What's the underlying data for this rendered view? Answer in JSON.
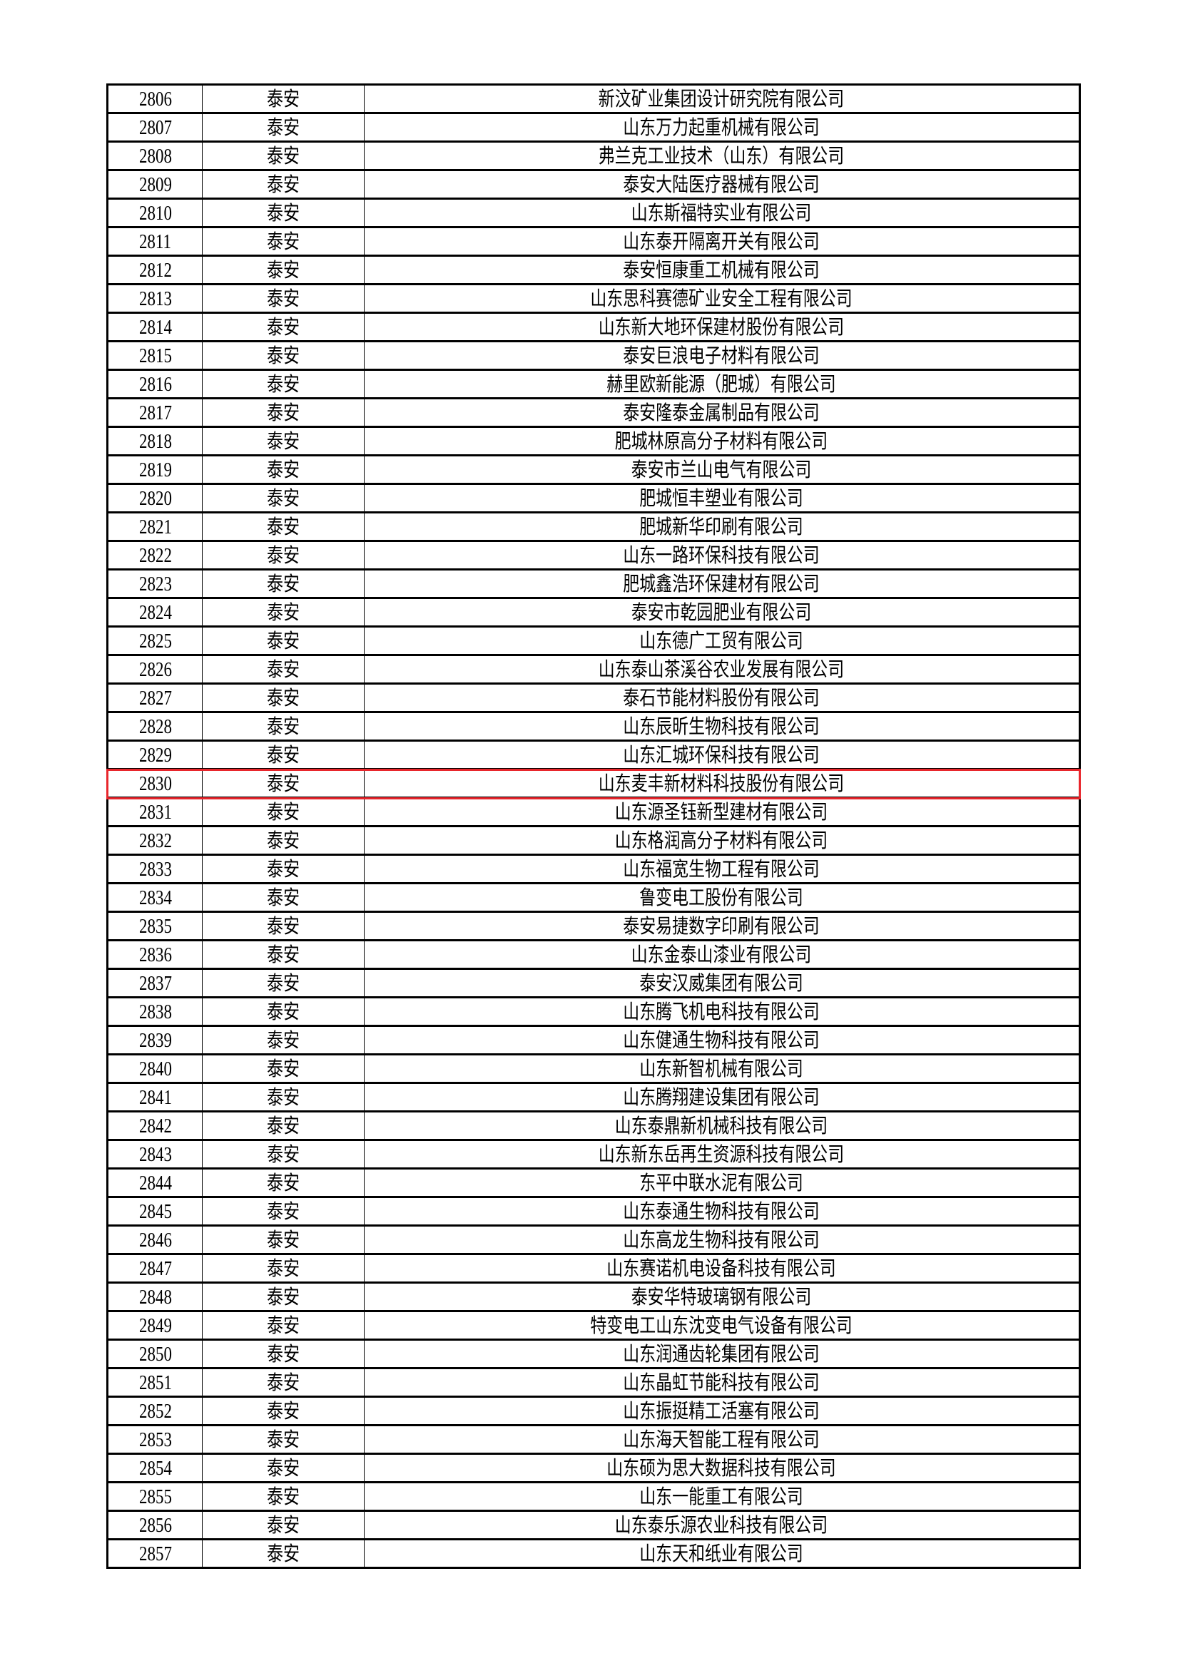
{
  "highlight_color": "#e8262c",
  "highlighted_no": "2830",
  "rows": [
    {
      "no": "2806",
      "city": "泰安",
      "company": "新汶矿业集团设计研究院有限公司"
    },
    {
      "no": "2807",
      "city": "泰安",
      "company": "山东万力起重机械有限公司"
    },
    {
      "no": "2808",
      "city": "泰安",
      "company": "弗兰克工业技术（山东）有限公司"
    },
    {
      "no": "2809",
      "city": "泰安",
      "company": "泰安大陆医疗器械有限公司"
    },
    {
      "no": "2810",
      "city": "泰安",
      "company": "山东斯福特实业有限公司"
    },
    {
      "no": "2811",
      "city": "泰安",
      "company": "山东泰开隔离开关有限公司"
    },
    {
      "no": "2812",
      "city": "泰安",
      "company": "泰安恒康重工机械有限公司"
    },
    {
      "no": "2813",
      "city": "泰安",
      "company": "山东思科赛德矿业安全工程有限公司"
    },
    {
      "no": "2814",
      "city": "泰安",
      "company": "山东新大地环保建材股份有限公司"
    },
    {
      "no": "2815",
      "city": "泰安",
      "company": "泰安巨浪电子材料有限公司"
    },
    {
      "no": "2816",
      "city": "泰安",
      "company": "赫里欧新能源（肥城）有限公司"
    },
    {
      "no": "2817",
      "city": "泰安",
      "company": "泰安隆泰金属制品有限公司"
    },
    {
      "no": "2818",
      "city": "泰安",
      "company": "肥城林原高分子材料有限公司"
    },
    {
      "no": "2819",
      "city": "泰安",
      "company": "泰安市兰山电气有限公司"
    },
    {
      "no": "2820",
      "city": "泰安",
      "company": "肥城恒丰塑业有限公司"
    },
    {
      "no": "2821",
      "city": "泰安",
      "company": "肥城新华印刷有限公司"
    },
    {
      "no": "2822",
      "city": "泰安",
      "company": "山东一路环保科技有限公司"
    },
    {
      "no": "2823",
      "city": "泰安",
      "company": "肥城鑫浩环保建材有限公司"
    },
    {
      "no": "2824",
      "city": "泰安",
      "company": "泰安市乾园肥业有限公司"
    },
    {
      "no": "2825",
      "city": "泰安",
      "company": "山东德广工贸有限公司"
    },
    {
      "no": "2826",
      "city": "泰安",
      "company": "山东泰山茶溪谷农业发展有限公司"
    },
    {
      "no": "2827",
      "city": "泰安",
      "company": "泰石节能材料股份有限公司"
    },
    {
      "no": "2828",
      "city": "泰安",
      "company": "山东辰昕生物科技有限公司"
    },
    {
      "no": "2829",
      "city": "泰安",
      "company": "山东汇城环保科技有限公司"
    },
    {
      "no": "2830",
      "city": "泰安",
      "company": "山东麦丰新材料科技股份有限公司"
    },
    {
      "no": "2831",
      "city": "泰安",
      "company": "山东源圣钰新型建材有限公司"
    },
    {
      "no": "2832",
      "city": "泰安",
      "company": "山东格润高分子材料有限公司"
    },
    {
      "no": "2833",
      "city": "泰安",
      "company": "山东福宽生物工程有限公司"
    },
    {
      "no": "2834",
      "city": "泰安",
      "company": "鲁变电工股份有限公司"
    },
    {
      "no": "2835",
      "city": "泰安",
      "company": "泰安易捷数字印刷有限公司"
    },
    {
      "no": "2836",
      "city": "泰安",
      "company": "山东金泰山漆业有限公司"
    },
    {
      "no": "2837",
      "city": "泰安",
      "company": "泰安汉威集团有限公司"
    },
    {
      "no": "2838",
      "city": "泰安",
      "company": "山东腾飞机电科技有限公司"
    },
    {
      "no": "2839",
      "city": "泰安",
      "company": "山东健通生物科技有限公司"
    },
    {
      "no": "2840",
      "city": "泰安",
      "company": "山东新智机械有限公司"
    },
    {
      "no": "2841",
      "city": "泰安",
      "company": "山东腾翔建设集团有限公司"
    },
    {
      "no": "2842",
      "city": "泰安",
      "company": "山东泰鼎新机械科技有限公司"
    },
    {
      "no": "2843",
      "city": "泰安",
      "company": "山东新东岳再生资源科技有限公司"
    },
    {
      "no": "2844",
      "city": "泰安",
      "company": "东平中联水泥有限公司"
    },
    {
      "no": "2845",
      "city": "泰安",
      "company": "山东泰通生物科技有限公司"
    },
    {
      "no": "2846",
      "city": "泰安",
      "company": "山东高龙生物科技有限公司"
    },
    {
      "no": "2847",
      "city": "泰安",
      "company": "山东赛诺机电设备科技有限公司"
    },
    {
      "no": "2848",
      "city": "泰安",
      "company": "泰安华特玻璃钢有限公司"
    },
    {
      "no": "2849",
      "city": "泰安",
      "company": "特变电工山东沈变电气设备有限公司"
    },
    {
      "no": "2850",
      "city": "泰安",
      "company": "山东润通齿轮集团有限公司"
    },
    {
      "no": "2851",
      "city": "泰安",
      "company": "山东晶虹节能科技有限公司"
    },
    {
      "no": "2852",
      "city": "泰安",
      "company": "山东振挺精工活塞有限公司"
    },
    {
      "no": "2853",
      "city": "泰安",
      "company": "山东海天智能工程有限公司"
    },
    {
      "no": "2854",
      "city": "泰安",
      "company": "山东硕为思大数据科技有限公司"
    },
    {
      "no": "2855",
      "city": "泰安",
      "company": "山东一能重工有限公司"
    },
    {
      "no": "2856",
      "city": "泰安",
      "company": "山东泰乐源农业科技有限公司"
    },
    {
      "no": "2857",
      "city": "泰安",
      "company": "山东天和纸业有限公司"
    }
  ]
}
